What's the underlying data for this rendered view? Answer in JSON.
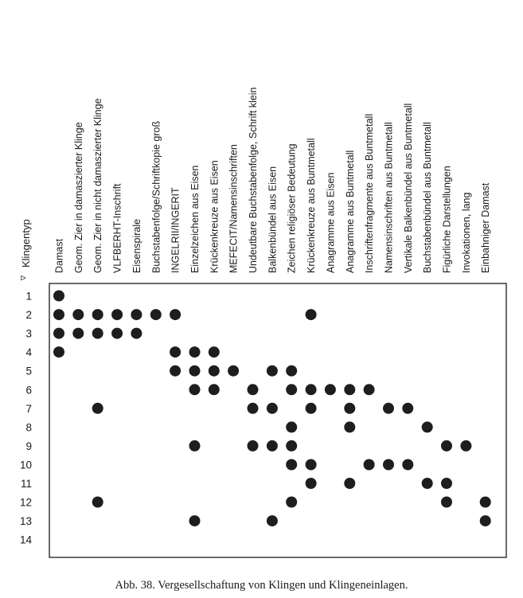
{
  "chart_data": {
    "type": "scatter",
    "title": "",
    "ylabel": "Klingentyp",
    "axis_marker": "▿",
    "rows": [
      "1",
      "2",
      "3",
      "4",
      "5",
      "6",
      "7",
      "8",
      "9",
      "10",
      "11",
      "12",
      "13",
      "14"
    ],
    "columns": [
      "Damast",
      "Geom. Zier in damaszierter Klinge",
      "Geom. Zier in nicht damaszierter Klinge",
      "VLFBERHT-Inschrift",
      "Eisenspirale",
      "Buchstabenfolge/Schriftkopie groß",
      "INGELRII/INGERIT",
      "Einzelzeichen aus Eisen",
      "Krückenkreuze aus Eisen",
      "MEFECIT/Namensinschriften",
      "Undeutbare Buchstabenfolge, Schrift klein",
      "Balkenbündel aus Eisen",
      "Zeichen religiöser Bedeutung",
      "Krückenkreuze aus Buntmetall",
      "Anagramme aus Eisen",
      "Anagramme aus Buntmetall",
      "Inschriftenfragmente aus Buntmetall",
      "Namensinschriften aus Buntmetall",
      "Vertikale Balkenbündel aus Buntmetall",
      "Buchstabenbündel aus Buntmetall",
      "Figürliche Darstellungen",
      "Invokationen, lang",
      "Einbahniger Damast"
    ],
    "occurrences": [
      {
        "row": "1",
        "columns": [
          0
        ]
      },
      {
        "row": "2",
        "columns": [
          0,
          1,
          2,
          3,
          4,
          5,
          6,
          13
        ]
      },
      {
        "row": "3",
        "columns": [
          0,
          1,
          2,
          3,
          4
        ]
      },
      {
        "row": "4",
        "columns": [
          0,
          6,
          7,
          8
        ]
      },
      {
        "row": "5",
        "columns": [
          6,
          7,
          8,
          9,
          11,
          12
        ]
      },
      {
        "row": "6",
        "columns": [
          7,
          8,
          10,
          12,
          13,
          14,
          15,
          16
        ]
      },
      {
        "row": "7",
        "columns": [
          2,
          10,
          11,
          13,
          15,
          17,
          18
        ]
      },
      {
        "row": "8",
        "columns": [
          12,
          15,
          19
        ]
      },
      {
        "row": "9",
        "columns": [
          7,
          10,
          11,
          12,
          20,
          21
        ]
      },
      {
        "row": "10",
        "columns": [
          12,
          13,
          16,
          17,
          18
        ]
      },
      {
        "row": "11",
        "columns": [
          13,
          15,
          19,
          20
        ]
      },
      {
        "row": "12",
        "columns": [
          2,
          12,
          20,
          22
        ]
      },
      {
        "row": "13",
        "columns": [
          7,
          11,
          22
        ]
      },
      {
        "row": "14",
        "columns": []
      }
    ],
    "marker_color": "#1e1e1e",
    "grid": false
  },
  "caption": "Abb. 38.  Vergesellschaftung von Klingen und Klingeneinlagen."
}
